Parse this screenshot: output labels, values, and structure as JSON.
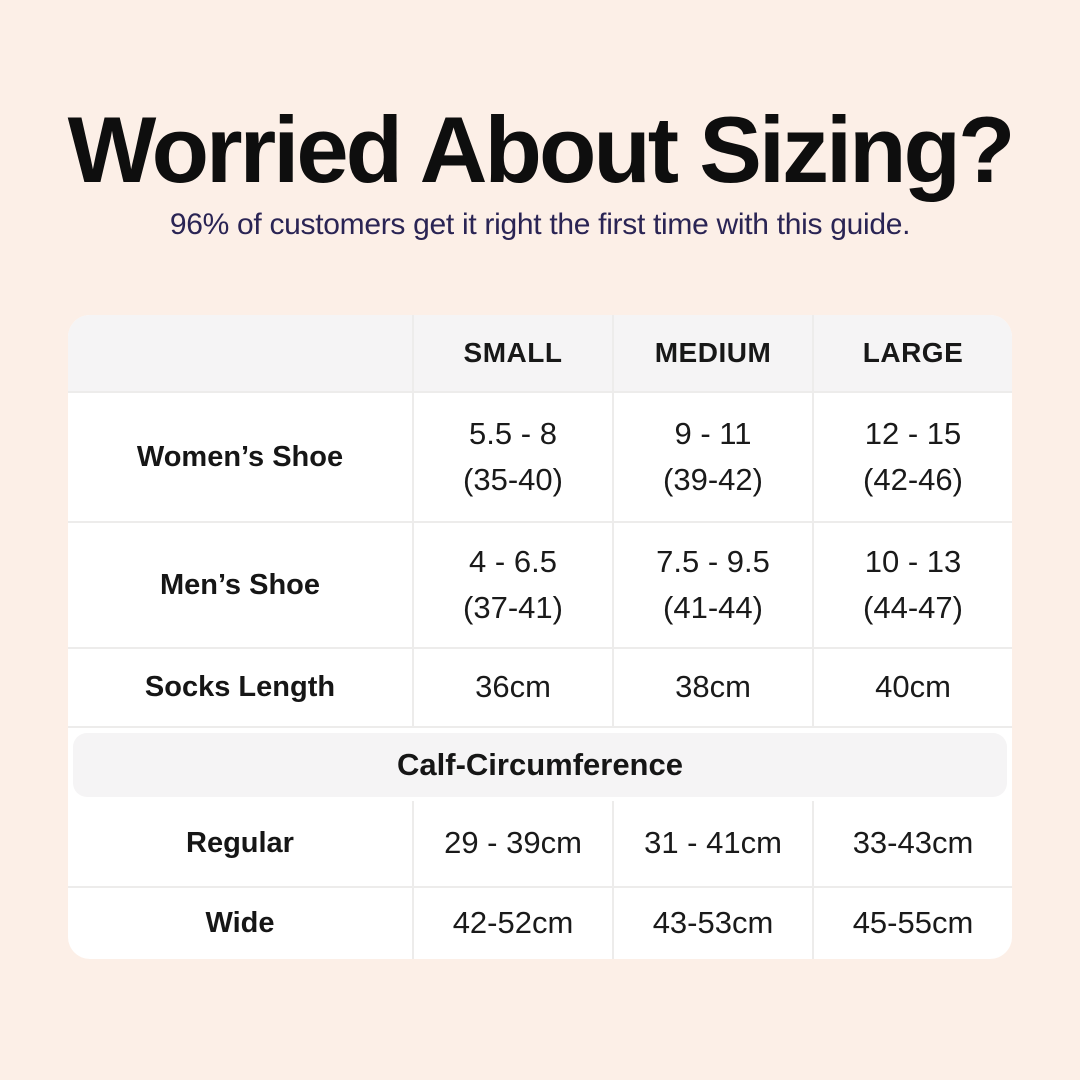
{
  "header": {
    "title": "Worried About Sizing?",
    "subtitle": "96% of customers get it right the first time with this guide."
  },
  "colors": {
    "background": "#fcefe7",
    "title_text": "#0e0e0e",
    "subtitle_text": "#2a2454",
    "card_background": "#ffffff",
    "header_band_background": "#f5f4f5",
    "grid_border": "#edeceb"
  },
  "table": {
    "column_headers": [
      "SMALL",
      "MEDIUM",
      "LARGE"
    ],
    "rows": [
      {
        "label": "Women’s Shoe",
        "cells": [
          {
            "line1": "5.5 - 8",
            "line2": "(35-40)"
          },
          {
            "line1": "9 - 11",
            "line2": "(39-42)"
          },
          {
            "line1": "12 - 15",
            "line2": "(42-46)"
          }
        ]
      },
      {
        "label": "Men’s Shoe",
        "cells": [
          {
            "line1": "4 - 6.5",
            "line2": "(37-41)"
          },
          {
            "line1": "7.5 - 9.5",
            "line2": "(41-44)"
          },
          {
            "line1": "10 - 13",
            "line2": "(44-47)"
          }
        ]
      },
      {
        "label": "Socks Length",
        "cells": [
          {
            "line1": "36cm"
          },
          {
            "line1": "38cm"
          },
          {
            "line1": "40cm"
          }
        ]
      }
    ],
    "section_header": "Calf-Circumference",
    "section_rows": [
      {
        "label": "Regular",
        "cells": [
          {
            "line1": "29 - 39cm"
          },
          {
            "line1": "31 - 41cm"
          },
          {
            "line1": "33-43cm"
          }
        ]
      },
      {
        "label": "Wide",
        "cells": [
          {
            "line1": "42-52cm"
          },
          {
            "line1": "43-53cm"
          },
          {
            "line1": "45-55cm"
          }
        ]
      }
    ]
  },
  "chart_data": {
    "type": "table",
    "title": "Worried About Sizing?",
    "subtitle": "96% of customers get it right the first time with this guide.",
    "columns": [
      "",
      "SMALL",
      "MEDIUM",
      "LARGE"
    ],
    "rows": [
      [
        "Women’s Shoe",
        "5.5 - 8 (35-40)",
        "9 - 11 (39-42)",
        "12 - 15 (42-46)"
      ],
      [
        "Men’s Shoe",
        "4 - 6.5 (37-41)",
        "7.5 - 9.5 (41-44)",
        "10 - 13 (44-47)"
      ],
      [
        "Socks Length",
        "36cm",
        "38cm",
        "40cm"
      ]
    ],
    "section": "Calf-Circumference",
    "section_rows": [
      [
        "Regular",
        "29 - 39cm",
        "31 - 41cm",
        "33-43cm"
      ],
      [
        "Wide",
        "42-52cm",
        "43-53cm",
        "45-55cm"
      ]
    ]
  }
}
